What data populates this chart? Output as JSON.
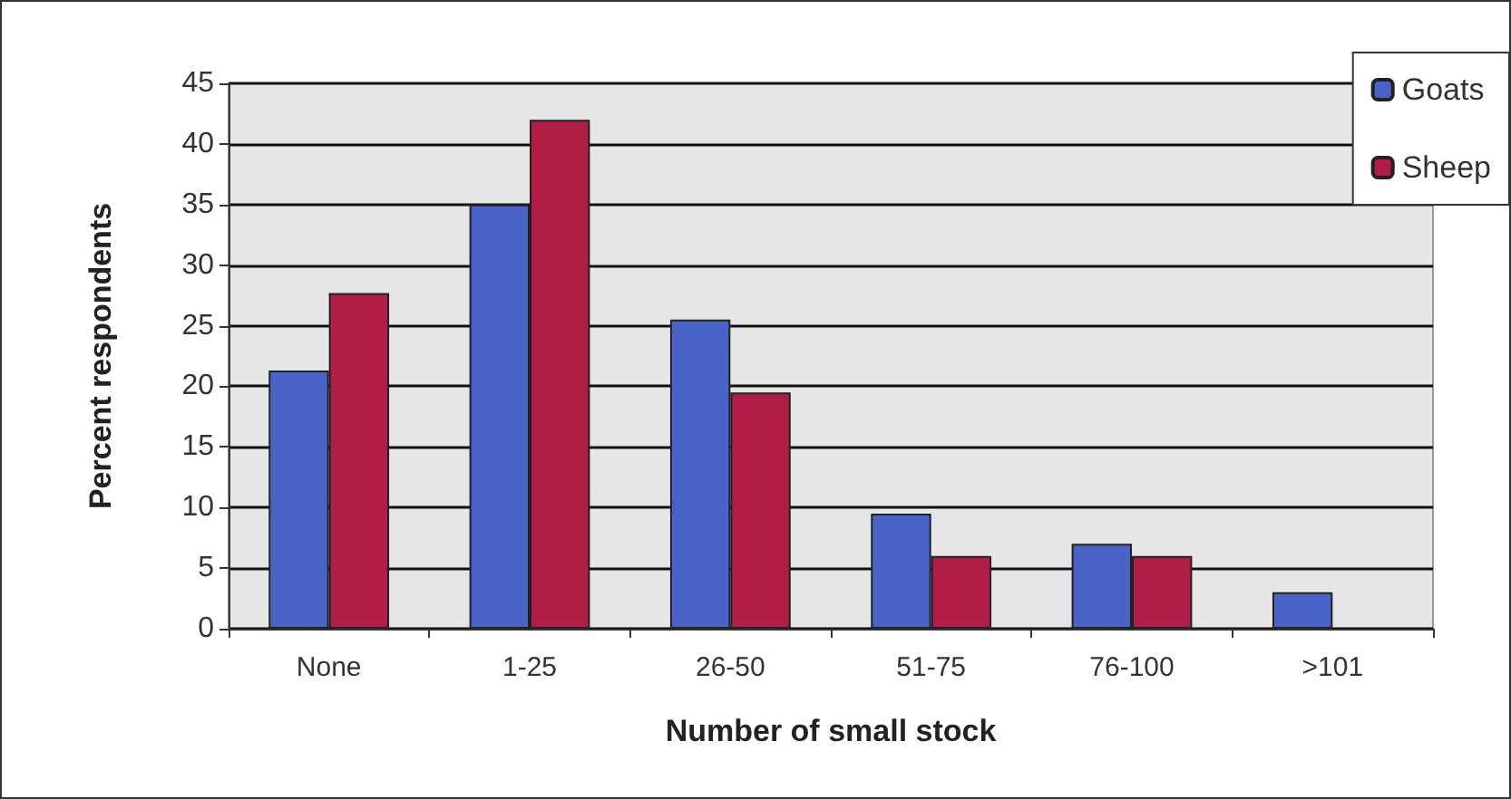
{
  "chart_data": {
    "type": "bar",
    "xlabel": "Number of small stock",
    "ylabel": "Percent respondents",
    "categories": [
      "None",
      "1-25",
      "26-50",
      "51-75",
      "76-100",
      ">101"
    ],
    "series": [
      {
        "name": "Goats",
        "color": "#4a63c8",
        "values": [
          21.3,
          35,
          25.5,
          9.5,
          7,
          3
        ]
      },
      {
        "name": "Sheep",
        "color": "#b01e48",
        "values": [
          27.7,
          42,
          19.5,
          6,
          6,
          null
        ]
      }
    ],
    "ylim": [
      0,
      45
    ],
    "yticks": [
      0,
      5,
      10,
      15,
      20,
      25,
      30,
      35,
      40,
      45
    ],
    "grid": "y",
    "legend": "top right"
  }
}
